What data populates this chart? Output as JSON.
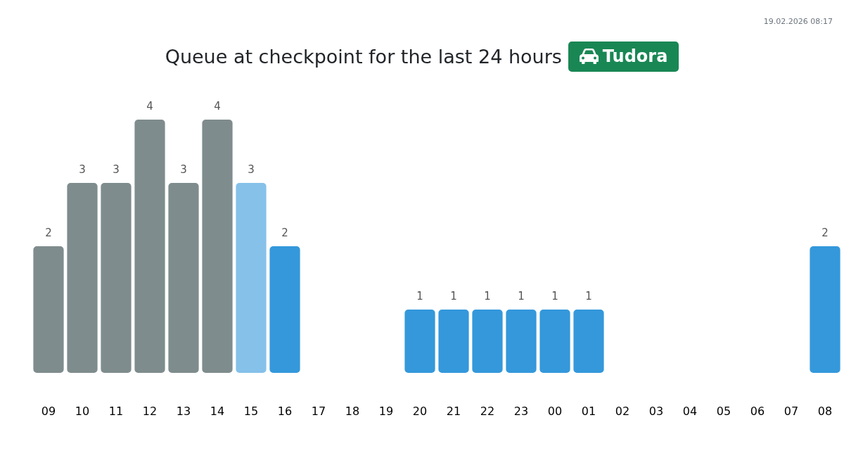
{
  "chart_data": {
    "type": "bar",
    "title": "Queue at checkpoint for the last 24 hours",
    "subtitle": "Tudora",
    "annotations": [
      "19.02.2026 08:17"
    ],
    "categories": [
      "09",
      "10",
      "11",
      "12",
      "13",
      "14",
      "15",
      "16",
      "17",
      "18",
      "19",
      "20",
      "21",
      "22",
      "23",
      "00",
      "01",
      "02",
      "03",
      "04",
      "05",
      "06",
      "07",
      "08"
    ],
    "values": [
      2,
      3,
      3,
      4,
      3,
      4,
      3,
      2,
      null,
      null,
      null,
      1,
      1,
      1,
      1,
      1,
      1,
      null,
      null,
      null,
      null,
      null,
      null,
      2
    ],
    "colors": [
      "#7f8c8d",
      "#7f8c8d",
      "#7f8c8d",
      "#7f8c8d",
      "#7f8c8d",
      "#7f8c8d",
      "#85c1e9",
      "#3498db",
      null,
      null,
      null,
      "#3498db",
      "#3498db",
      "#3498db",
      "#3498db",
      "#3498db",
      "#3498db",
      null,
      null,
      null,
      null,
      null,
      null,
      "#3498db"
    ],
    "data_labels": true,
    "tick_labels": "x"
  }
}
